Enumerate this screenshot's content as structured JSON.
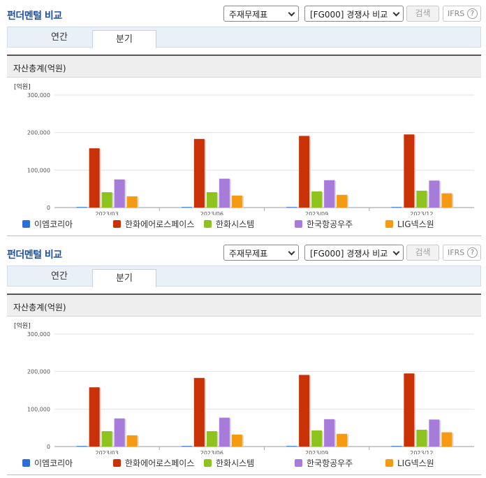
{
  "panels": [
    {
      "title": "펀더멘털 비교",
      "select_statement": "주재무제표",
      "select_compare": "[FG000] 경쟁사 비교",
      "search_label": "검색",
      "ifrs_label": "IFRS",
      "help_label": "?",
      "tabs": [
        {
          "label": "연간"
        },
        {
          "label": "분기"
        }
      ],
      "chart_title": "자산총계(억원)",
      "unit_label": "[억원]"
    },
    {
      "title": "펀더멘털 비교",
      "select_statement": "주재무제표",
      "select_compare": "[FG000] 경쟁사 비교",
      "search_label": "검색",
      "ifrs_label": "IFRS",
      "help_label": "?",
      "tabs": [
        {
          "label": "연간"
        },
        {
          "label": "분기"
        }
      ],
      "chart_title": "자산총계(억원)",
      "unit_label": "[억원]"
    }
  ],
  "chart_data": [
    {
      "type": "bar",
      "title": "자산총계(억원)",
      "ylabel": "[억원]",
      "ylim": [
        0,
        300000
      ],
      "yticks": [
        0,
        100000,
        200000,
        300000
      ],
      "ytick_labels": [
        "0",
        "100,000",
        "200,000",
        "300,000"
      ],
      "categories": [
        "2023/03",
        "2023/06",
        "2023/09",
        "2023/12"
      ],
      "grid": true,
      "legend_position": "bottom",
      "series": [
        {
          "name": "이엠코리아",
          "color": "#2d6fd6",
          "values": [
            1500,
            1500,
            1500,
            1500
          ]
        },
        {
          "name": "한화에어로스페이스",
          "color": "#c93206",
          "values": [
            158000,
            183000,
            191000,
            195000
          ]
        },
        {
          "name": "한화시스템",
          "color": "#8dc21f",
          "values": [
            41000,
            41000,
            43000,
            45000
          ]
        },
        {
          "name": "한국항공우주",
          "color": "#a77bd9",
          "values": [
            75000,
            77000,
            73000,
            72000
          ]
        },
        {
          "name": "LIG넥스원",
          "color": "#f59b13",
          "values": [
            30000,
            32000,
            34000,
            38000
          ]
        }
      ]
    },
    {
      "type": "bar",
      "title": "자산총계(억원)",
      "ylabel": "[억원]",
      "ylim": [
        0,
        300000
      ],
      "yticks": [
        0,
        100000,
        200000,
        300000
      ],
      "ytick_labels": [
        "0",
        "100,000",
        "200,000",
        "300,000"
      ],
      "categories": [
        "2023/03",
        "2023/06",
        "2023/09",
        "2023/12"
      ],
      "grid": true,
      "legend_position": "bottom",
      "series": [
        {
          "name": "이엠코리아",
          "color": "#2d6fd6",
          "values": [
            1500,
            1500,
            1500,
            1500
          ]
        },
        {
          "name": "한화에어로스페이스",
          "color": "#c93206",
          "values": [
            158000,
            183000,
            191000,
            195000
          ]
        },
        {
          "name": "한화시스템",
          "color": "#8dc21f",
          "values": [
            41000,
            41000,
            43000,
            45000
          ]
        },
        {
          "name": "한국항공우주",
          "color": "#a77bd9",
          "values": [
            75000,
            77000,
            73000,
            72000
          ]
        },
        {
          "name": "LIG넥스원",
          "color": "#f59b13",
          "values": [
            30000,
            32000,
            34000,
            38000
          ]
        }
      ]
    }
  ]
}
